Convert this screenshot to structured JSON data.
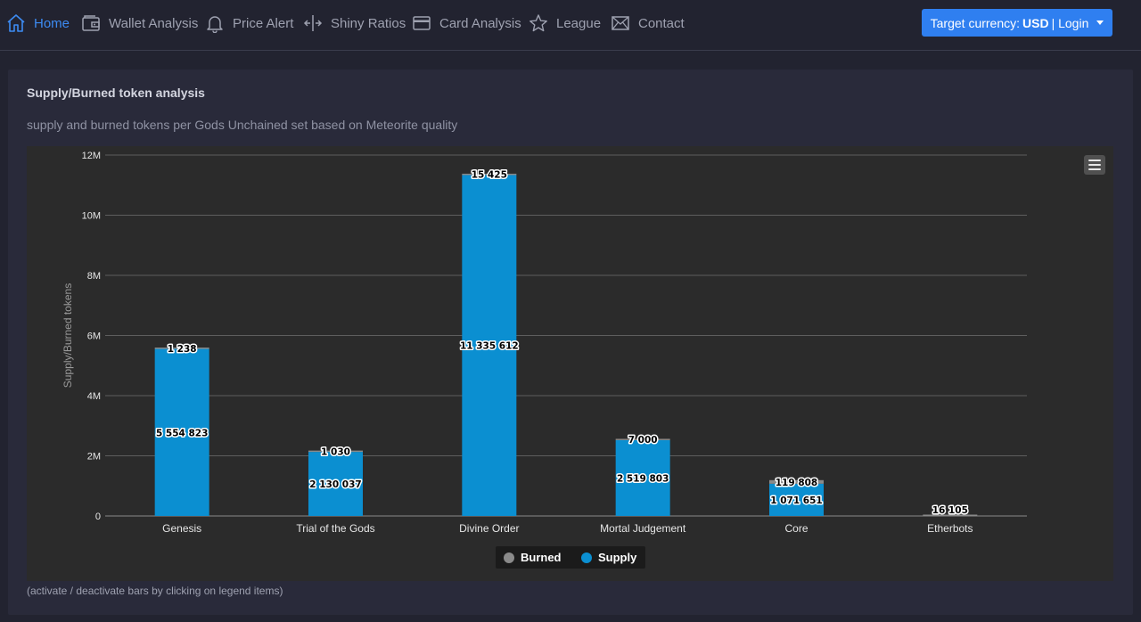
{
  "nav": {
    "items": [
      {
        "label": "Home",
        "icon": "home-icon",
        "active": true
      },
      {
        "label": "Wallet Analysis",
        "icon": "wallet-icon"
      },
      {
        "label": "Price Alert",
        "icon": "bell-icon"
      },
      {
        "label": "Shiny Ratios",
        "icon": "split-arrows-icon"
      },
      {
        "label": "Card Analysis",
        "icon": "card-icon"
      },
      {
        "label": "League",
        "icon": "star-icon"
      },
      {
        "label": "Contact",
        "icon": "envelope-icon"
      }
    ],
    "login": {
      "prefix": "Target currency:",
      "currency": "USD",
      "suffix": "| Login"
    }
  },
  "panel": {
    "title": "Supply/Burned token analysis",
    "subtitle": "supply and burned tokens per Gods Unchained set based on Meteorite quality",
    "footnote": "(activate / deactivate bars by clicking on legend items)"
  },
  "colors": {
    "supply": "#0b8fd1",
    "burned": "#8a8a8a",
    "accent": "#2f7ff0",
    "active_nav": "#3d8bf2"
  },
  "chart_data": {
    "type": "bar",
    "stacked": true,
    "ylabel": "Supply/Burned tokens",
    "ylim": [
      0,
      12000000
    ],
    "yticks": [
      0,
      2000000,
      4000000,
      6000000,
      8000000,
      10000000,
      12000000
    ],
    "ytick_labels": [
      "0",
      "2M",
      "4M",
      "6M",
      "8M",
      "10M",
      "12M"
    ],
    "categories": [
      "Genesis",
      "Trial of the Gods",
      "Divine Order",
      "Mortal Judgement",
      "Core",
      "Etherbots"
    ],
    "series": [
      {
        "name": "Burned",
        "values": [
          1238,
          1030,
          15425,
          7000,
          119808,
          16105
        ],
        "labels": [
          "1 238",
          "1 030",
          "15 425",
          "7 000",
          "119 808",
          "16 105"
        ]
      },
      {
        "name": "Supply",
        "values": [
          5554823,
          2130037,
          11335612,
          2519803,
          1071651,
          0
        ],
        "labels": [
          "5 554 823",
          "2 130 037",
          "11 335 612",
          "2 519 803",
          "1 071 651",
          ""
        ]
      }
    ],
    "legend": "bottom-center",
    "grid": true
  }
}
